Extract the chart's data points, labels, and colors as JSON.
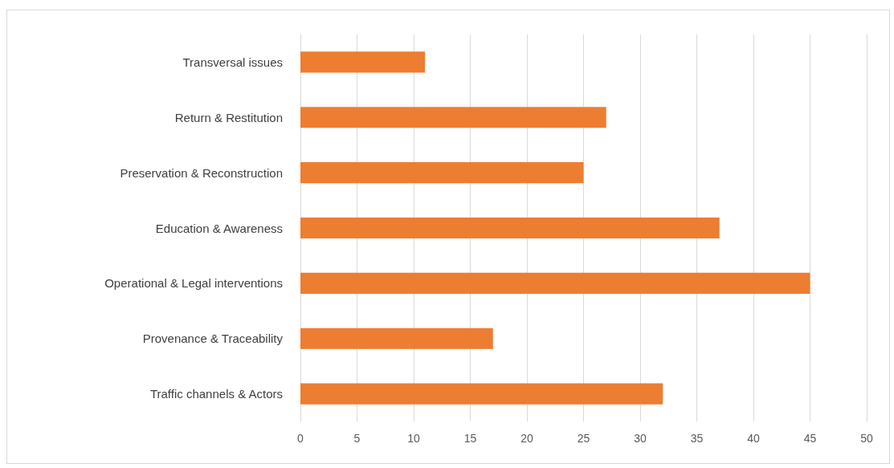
{
  "chart_data": {
    "type": "bar",
    "orientation": "horizontal",
    "categories": [
      "Transversal issues",
      "Return & Restitution",
      "Preservation & Reconstruction",
      "Education & Awareness",
      "Operational & Legal interventions",
      "Provenance & Traceability",
      "Traffic channels & Actors"
    ],
    "values": [
      11,
      27,
      25,
      37,
      45,
      17,
      32
    ],
    "color": "#ed7d31",
    "xlim": [
      0,
      50
    ],
    "xticks": [
      0,
      5,
      10,
      15,
      20,
      25,
      30,
      35,
      40,
      45,
      50
    ],
    "grid": "x"
  }
}
